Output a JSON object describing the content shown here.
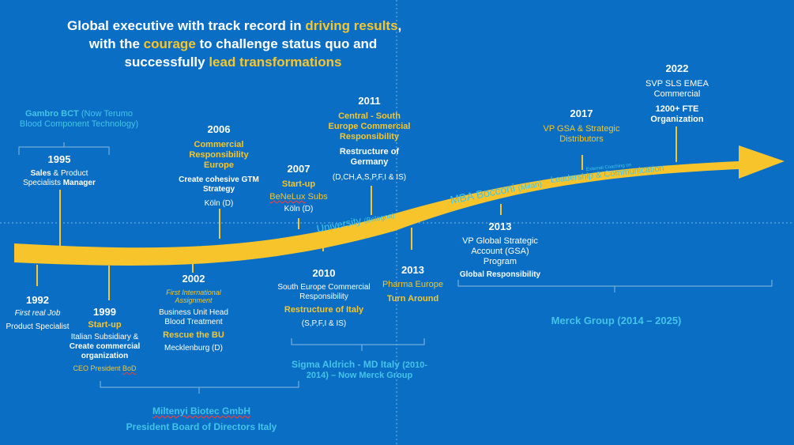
{
  "headline": {
    "l1a": "Global executive with track record in ",
    "l1b": "driving results",
    "l1c": ",",
    "l2a": "with the ",
    "l2b": "courage",
    "l2c": " to challenge status quo and",
    "l3a": "successfully ",
    "l3b": "lead transformations"
  },
  "arrow_labels": {
    "university": "University",
    "university_sub": "(Bologna)",
    "mba": "MBA Bocconi",
    "mba_sub": "(Milan)",
    "coaching": "External Coaching on",
    "leadership": "Leadership & Communication"
  },
  "companies": {
    "gambro": "Gambro BCT",
    "gambro_paren1": "(Now Terumo",
    "gambro_paren2": "Blood Component Technology)",
    "miltenyi": "Miltenyi Biotec GmbH",
    "miltenyi_role": "President Board of Directors Italy",
    "sigma_a": "Sigma Aldrich - MD Italy",
    "sigma_b": "(2010-",
    "sigma_c": "2014) – Now Merck Group",
    "merck": "Merck Group (2014 – 2025)"
  },
  "events": {
    "e1992": {
      "year": "1992",
      "a": "First real Job",
      "b": "Product Specialist"
    },
    "e1995": {
      "year": "1995",
      "a1": "Sales",
      "a2": " & Product",
      "b1": "Specialists ",
      "b2": "Manager"
    },
    "e1999": {
      "year": "1999",
      "a": "Start-up",
      "b": "Italian Subsidiary &",
      "c1": "Create commercial",
      "c2": "organization",
      "d1": "CEO President ",
      "d2": "BoD"
    },
    "e2002": {
      "year": "2002",
      "a1": "First International",
      "a2": "Assignment",
      "b1": "Business Unit Head",
      "b2": "Blood Treatment",
      "c": "Rescue the BU",
      "d": "Mecklenburg (D)"
    },
    "e2006": {
      "year": "2006",
      "a1": "Commercial",
      "a2": "Responsibility",
      "a3": "Europe",
      "b1": "Create cohesive GTM",
      "b2": "Strategy",
      "c": "Köln (D)"
    },
    "e2007": {
      "year": "2007",
      "a": "Start-up",
      "b1": "BeNeLux",
      "b2": " Subs",
      "c": "Köln (D)"
    },
    "e2010": {
      "year": "2010",
      "a1": "South Europe Commercial",
      "a2": "Responsibility",
      "b": "Restructure of Italy",
      "c": "(S,P,F,I & IS)"
    },
    "e2011": {
      "year": "2011",
      "a1": "Central - South",
      "a2": "Europe Commercial",
      "a3": "Responsibility",
      "b1": "Restructure of",
      "b2": "Germany",
      "c": "(D,CH,A,S,P,F,I & IS)"
    },
    "e2013a": {
      "year": "2013",
      "a": "Pharma Europe",
      "b": "Turn Around"
    },
    "e2013b": {
      "year": "2013",
      "a1": "VP Global Strategic",
      "a2": "Account (GSA)",
      "a3": "Program",
      "b": "Global Responsibility"
    },
    "e2017": {
      "year": "2017",
      "a1": "VP GSA & Strategic",
      "a2": "Distributors"
    },
    "e2022": {
      "year": "2022",
      "a1": "SVP SLS EMEA",
      "a2": "Commercial",
      "b1": "1200+ FTE",
      "b2": "Organization"
    }
  },
  "colors": {
    "background": "#0a6fc4",
    "accent": "#f7c52b",
    "cyan": "#43c3e8",
    "text": "#ffffff"
  }
}
